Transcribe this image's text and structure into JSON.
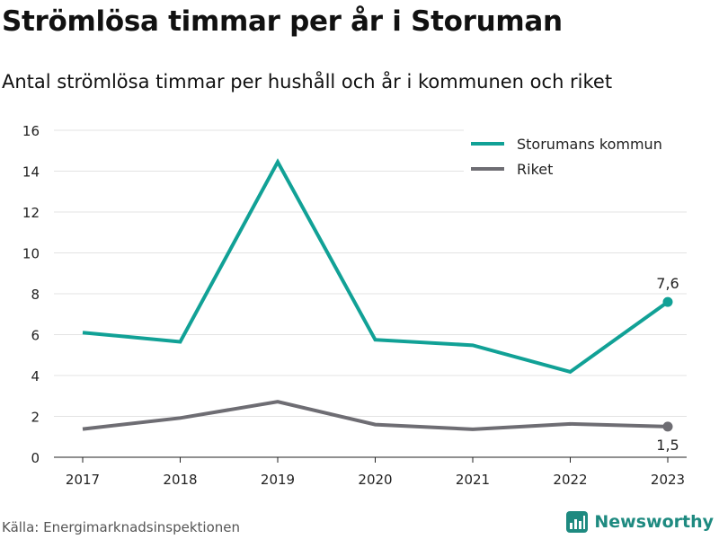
{
  "title": "Strömlösa timmar per år i Storuman",
  "subtitle": "Antal strömlösa timmar per hushåll och år i kommunen och riket",
  "source": "Källa: Energimarknadsinspektionen",
  "brand": {
    "name": "Newsworthy",
    "icon": "newsworthy-logo-icon",
    "color": "#1e8a80"
  },
  "chart_data": {
    "type": "line",
    "x": [
      "2017",
      "2018",
      "2019",
      "2020",
      "2021",
      "2022",
      "2023"
    ],
    "ylim": [
      0,
      16
    ],
    "yticks": [
      "0",
      "2",
      "4",
      "6",
      "8",
      "10",
      "12",
      "14",
      "16"
    ],
    "grid": true,
    "legend_position": "top-right",
    "series": [
      {
        "name": "Storumans kommun",
        "color": "#11a196",
        "values": [
          6.1,
          5.65,
          14.45,
          5.75,
          5.48,
          4.18,
          7.6
        ],
        "end_label": "7,6",
        "end_label_position": "above"
      },
      {
        "name": "Riket",
        "color": "#6e6d73",
        "values": [
          1.38,
          1.92,
          2.72,
          1.6,
          1.37,
          1.63,
          1.5
        ],
        "end_label": "1,5",
        "end_label_position": "below"
      }
    ]
  }
}
